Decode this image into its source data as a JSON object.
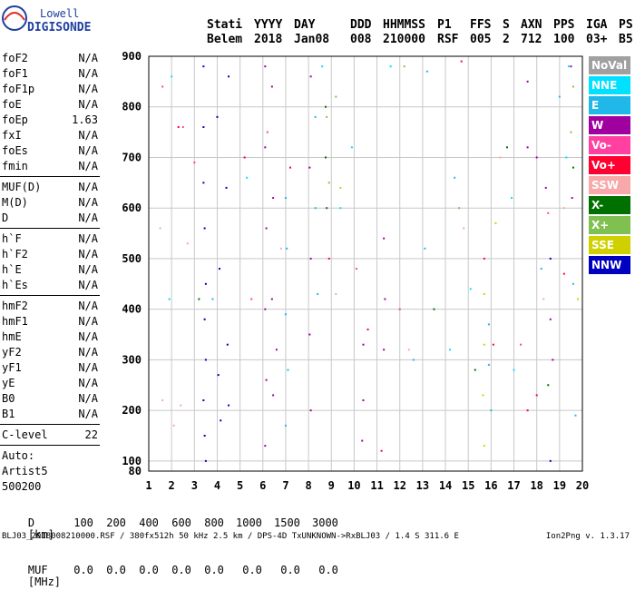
{
  "logo": {
    "brand_top": "Lowell",
    "brand_bottom": "DIGISONDE"
  },
  "header": {
    "labels": [
      "Stati",
      "YYYY",
      "DAY",
      "DDD",
      "HHMMSS",
      "P1",
      "FFS",
      "S",
      "AXN",
      "PPS",
      "IGA",
      "PS"
    ],
    "values": [
      "Belem",
      "2018",
      "Jan08",
      "008",
      "210000",
      "RSF",
      "005",
      "2",
      "712",
      "100",
      "03+",
      "B5"
    ]
  },
  "params": {
    "group1": [
      {
        "label": "foF2",
        "value": "N/A"
      },
      {
        "label": "foF1",
        "value": "N/A"
      },
      {
        "label": "foF1p",
        "value": "N/A"
      },
      {
        "label": "foE",
        "value": "N/A"
      },
      {
        "label": "foEp",
        "value": "1.63"
      },
      {
        "label": "fxI",
        "value": "N/A"
      },
      {
        "label": "foEs",
        "value": "N/A"
      },
      {
        "label": "fmin",
        "value": "N/A"
      }
    ],
    "group2": [
      {
        "label": "MUF(D)",
        "value": "N/A"
      },
      {
        "label": "M(D)",
        "value": "N/A"
      },
      {
        "label": "D",
        "value": "N/A"
      }
    ],
    "group3": [
      {
        "label": "h`F",
        "value": "N/A"
      },
      {
        "label": "h`F2",
        "value": "N/A"
      },
      {
        "label": "h`E",
        "value": "N/A"
      },
      {
        "label": "h`Es",
        "value": "N/A"
      }
    ],
    "group4": [
      {
        "label": "hmF2",
        "value": "N/A"
      },
      {
        "label": "hmF1",
        "value": "N/A"
      },
      {
        "label": "hmE",
        "value": "N/A"
      },
      {
        "label": "yF2",
        "value": "N/A"
      },
      {
        "label": "yF1",
        "value": "N/A"
      },
      {
        "label": "yE",
        "value": "N/A"
      },
      {
        "label": "B0",
        "value": "N/A"
      },
      {
        "label": "B1",
        "value": "N/A"
      }
    ],
    "clevel": {
      "label": "C-level",
      "value": "22"
    },
    "auto_lines": [
      "Auto:",
      "Artist5",
      "500200"
    ]
  },
  "legend": [
    {
      "label": "NoVal",
      "color": "#a0a0a0"
    },
    {
      "label": "NNE",
      "color": "#00e0ff"
    },
    {
      "label": "E",
      "color": "#20b8e8"
    },
    {
      "label": "W",
      "color": "#a000a0"
    },
    {
      "label": "Vo-",
      "color": "#ff40a0"
    },
    {
      "label": "Vo+",
      "color": "#ff0030"
    },
    {
      "label": "SSW",
      "color": "#f8a8a8"
    },
    {
      "label": "X-",
      "color": "#007000"
    },
    {
      "label": "X+",
      "color": "#80c050"
    },
    {
      "label": "SSE",
      "color": "#d0d000"
    },
    {
      "label": "NNW",
      "color": "#0000c0"
    }
  ],
  "bottom": {
    "d_label": "D",
    "d_values": [
      "100",
      "200",
      "400",
      "600",
      "800",
      "1000",
      "1500",
      "3000"
    ],
    "d_unit": "[km]",
    "muf_label": "MUF",
    "muf_values": [
      "0.0",
      "0.0",
      "0.0",
      "0.0",
      "0.0",
      "0.0",
      "0.0",
      "0.0"
    ],
    "muf_unit": "[MHz]"
  },
  "footer": {
    "text": "BLJ03_2018008210000.RSF / 380fx512h 50 kHz 2.5 km / DPS-4D TxUNKNOWN->RxBLJ03 / 1.4 S 311.6 E",
    "version": "Ion2Png v. 1.3.17"
  },
  "chart_data": {
    "type": "scatter",
    "xlim": [
      1,
      20
    ],
    "ylim": [
      80,
      900
    ],
    "x_ticks": [
      "1",
      "2",
      "3",
      "4",
      "5",
      "6",
      "7",
      "8",
      "9",
      "10",
      "11",
      "12",
      "13",
      "14",
      "15",
      "16",
      "17",
      "18",
      "19",
      "20"
    ],
    "y_ticks": [
      "80",
      "100",
      "200",
      "300",
      "400",
      "500",
      "600",
      "700",
      "800",
      "900"
    ],
    "grid": true,
    "series": [
      {
        "name": "NNW",
        "color": "#0000c0",
        "points": [
          [
            3.4,
            880
          ],
          [
            3.4,
            760
          ],
          [
            3.4,
            650
          ],
          [
            3.45,
            560
          ],
          [
            3.5,
            450
          ],
          [
            3.45,
            380
          ],
          [
            3.5,
            300
          ],
          [
            3.4,
            220
          ],
          [
            3.45,
            150
          ],
          [
            3.5,
            100
          ],
          [
            4.0,
            780
          ],
          [
            4.1,
            480
          ],
          [
            4.05,
            270
          ],
          [
            4.15,
            180
          ],
          [
            4.5,
            860
          ],
          [
            4.4,
            640
          ],
          [
            4.45,
            330
          ],
          [
            4.5,
            210
          ],
          [
            18.6,
            500
          ],
          [
            18.6,
            100
          ]
        ]
      },
      {
        "name": "W",
        "color": "#a000a0",
        "points": [
          [
            6.1,
            880
          ],
          [
            6.1,
            720
          ],
          [
            6.15,
            560
          ],
          [
            6.1,
            400
          ],
          [
            6.15,
            260
          ],
          [
            6.1,
            130
          ],
          [
            6.4,
            840
          ],
          [
            6.45,
            620
          ],
          [
            6.4,
            420
          ],
          [
            6.45,
            230
          ],
          [
            6.6,
            320
          ],
          [
            8.1,
            860
          ],
          [
            8.05,
            680
          ],
          [
            8.1,
            500
          ],
          [
            8.05,
            350
          ],
          [
            8.1,
            200
          ],
          [
            10.4,
            330
          ],
          [
            10.4,
            220
          ],
          [
            10.35,
            140
          ],
          [
            11.3,
            540
          ],
          [
            11.35,
            420
          ],
          [
            11.3,
            320
          ],
          [
            17.6,
            850
          ],
          [
            17.6,
            720
          ],
          [
            18.0,
            700
          ],
          [
            18.4,
            640
          ],
          [
            18.6,
            380
          ],
          [
            18.7,
            300
          ],
          [
            19.5,
            880
          ],
          [
            19.55,
            620
          ]
        ]
      },
      {
        "name": "E",
        "color": "#20b8e8",
        "points": [
          [
            7.0,
            620
          ],
          [
            7.05,
            520
          ],
          [
            7.0,
            390
          ],
          [
            7.1,
            280
          ],
          [
            7.0,
            170
          ],
          [
            8.3,
            780
          ],
          [
            8.3,
            600
          ],
          [
            8.4,
            430
          ],
          [
            13.2,
            870
          ],
          [
            13.1,
            520
          ],
          [
            15.9,
            370
          ],
          [
            15.9,
            290
          ],
          [
            16.0,
            200
          ],
          [
            18.2,
            480
          ],
          [
            19.0,
            820
          ],
          [
            19.6,
            450
          ],
          [
            19.7,
            190
          ],
          [
            3.8,
            420
          ],
          [
            12.6,
            300
          ],
          [
            14.4,
            660
          ]
        ]
      },
      {
        "name": "NNE",
        "color": "#00e0ff",
        "points": [
          [
            2.0,
            860
          ],
          [
            1.9,
            420
          ],
          [
            5.3,
            660
          ],
          [
            8.6,
            880
          ],
          [
            9.9,
            720
          ],
          [
            11.6,
            880
          ],
          [
            14.2,
            320
          ],
          [
            15.1,
            440
          ],
          [
            16.9,
            620
          ],
          [
            17.0,
            280
          ],
          [
            19.3,
            700
          ],
          [
            19.4,
            880
          ],
          [
            9.4,
            600
          ]
        ]
      },
      {
        "name": "Vo-",
        "color": "#ff40a0",
        "points": [
          [
            1.6,
            840
          ],
          [
            2.5,
            760
          ],
          [
            3.0,
            690
          ],
          [
            5.5,
            420
          ],
          [
            6.2,
            750
          ],
          [
            10.1,
            480
          ],
          [
            12.0,
            400
          ],
          [
            17.3,
            330
          ],
          [
            18.5,
            590
          ]
        ]
      },
      {
        "name": "Vo+",
        "color": "#ff0030",
        "points": [
          [
            2.3,
            760
          ],
          [
            5.2,
            700
          ],
          [
            7.2,
            680
          ],
          [
            8.9,
            500
          ],
          [
            10.6,
            360
          ],
          [
            11.2,
            120
          ],
          [
            14.7,
            890
          ],
          [
            15.7,
            500
          ],
          [
            16.1,
            330
          ],
          [
            18.0,
            230
          ],
          [
            19.2,
            470
          ],
          [
            17.6,
            200
          ]
        ]
      },
      {
        "name": "SSW",
        "color": "#f8a8a8",
        "points": [
          [
            1.5,
            560
          ],
          [
            1.6,
            220
          ],
          [
            2.1,
            170
          ],
          [
            2.4,
            210
          ],
          [
            2.7,
            530
          ],
          [
            6.8,
            520
          ],
          [
            9.2,
            430
          ],
          [
            12.4,
            320
          ],
          [
            14.8,
            560
          ],
          [
            16.4,
            700
          ],
          [
            18.3,
            420
          ],
          [
            19.2,
            600
          ]
        ]
      },
      {
        "name": "X-",
        "color": "#007000",
        "points": [
          [
            3.2,
            420
          ],
          [
            8.75,
            800
          ],
          [
            8.75,
            700
          ],
          [
            8.8,
            600
          ],
          [
            13.5,
            400
          ],
          [
            15.3,
            280
          ],
          [
            16.7,
            720
          ],
          [
            18.5,
            250
          ],
          [
            19.6,
            680
          ]
        ]
      },
      {
        "name": "X+",
        "color": "#80c050",
        "points": [
          [
            8.8,
            780
          ],
          [
            8.9,
            650
          ],
          [
            9.2,
            820
          ],
          [
            12.2,
            880
          ],
          [
            14.6,
            600
          ],
          [
            19.5,
            750
          ],
          [
            19.6,
            840
          ]
        ]
      },
      {
        "name": "SSE",
        "color": "#d0d000",
        "points": [
          [
            15.7,
            430
          ],
          [
            15.7,
            330
          ],
          [
            15.65,
            230
          ],
          [
            15.7,
            130
          ],
          [
            16.2,
            570
          ],
          [
            9.4,
            640
          ],
          [
            19.8,
            420
          ]
        ]
      }
    ]
  }
}
